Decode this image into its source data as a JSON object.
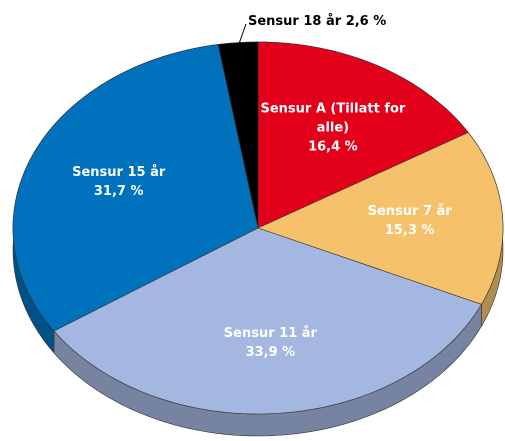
{
  "chart_data": {
    "type": "pie",
    "categories": [
      "Sensur A (Tillatt for alle)",
      "Sensur 7 år",
      "Sensur 11 år",
      "Sensur 15 år",
      "Sensur 18 år"
    ],
    "values": [
      16.4,
      15.3,
      33.9,
      31.7,
      2.6
    ],
    "value_labels": [
      "16,4 %",
      "15,3 %",
      "33,9 %",
      "31,7 %",
      "2,6 %"
    ],
    "colors": [
      "#e2001a",
      "#f5c26b",
      "#a4b7e0",
      "#0071bc",
      "#000000"
    ]
  }
}
